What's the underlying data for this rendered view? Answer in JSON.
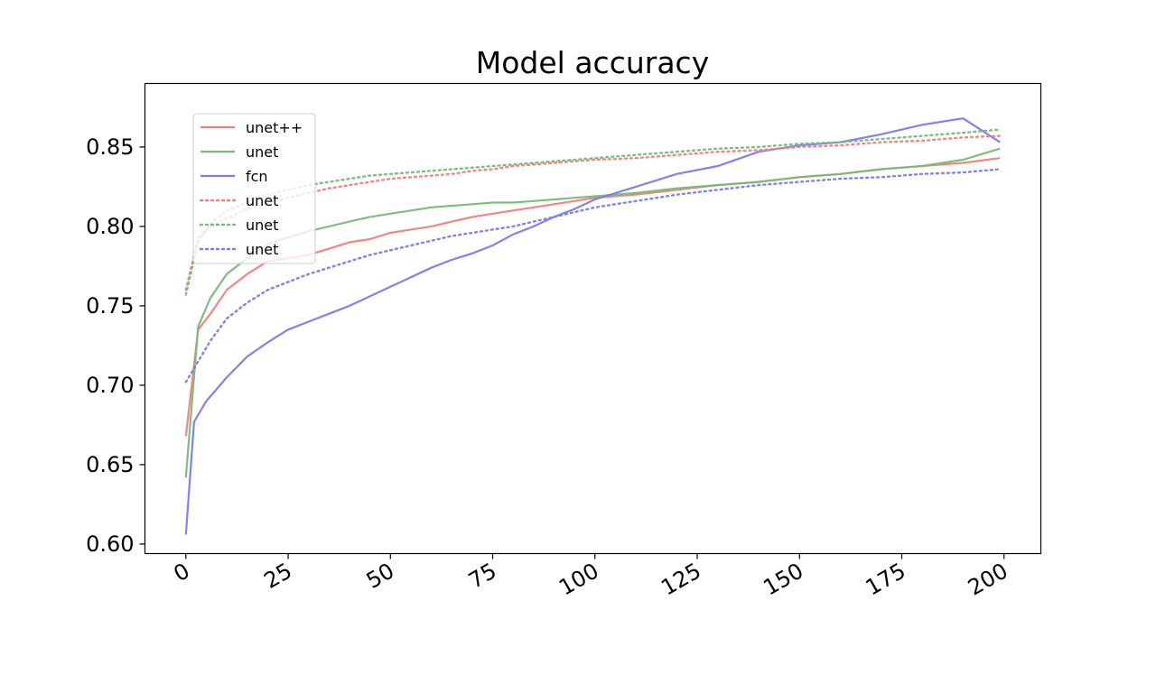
{
  "chart_data": {
    "type": "line",
    "title": "Model accuracy",
    "xlabel": "",
    "ylabel": "",
    "xlim": [
      -10,
      209
    ],
    "ylim": [
      0.594,
      0.89
    ],
    "xticks": [
      0,
      25,
      50,
      75,
      100,
      125,
      150,
      175,
      200
    ],
    "yticks": [
      0.6,
      0.65,
      0.7,
      0.75,
      0.8,
      0.85
    ],
    "ytick_labels": [
      "0.60",
      "0.65",
      "0.70",
      "0.75",
      "0.80",
      "0.85"
    ],
    "grid": false,
    "legend_position": "upper-left",
    "series": [
      {
        "name": "unet++",
        "color": "#f08080",
        "style": "solid",
        "points": [
          [
            0,
            0.668
          ],
          [
            3,
            0.735
          ],
          [
            6,
            0.745
          ],
          [
            10,
            0.76
          ],
          [
            15,
            0.77
          ],
          [
            20,
            0.778
          ],
          [
            25,
            0.78
          ],
          [
            30,
            0.782
          ],
          [
            35,
            0.786
          ],
          [
            40,
            0.79
          ],
          [
            45,
            0.792
          ],
          [
            50,
            0.796
          ],
          [
            55,
            0.798
          ],
          [
            60,
            0.8
          ],
          [
            65,
            0.803
          ],
          [
            70,
            0.806
          ],
          [
            75,
            0.808
          ],
          [
            80,
            0.81
          ],
          [
            85,
            0.812
          ],
          [
            90,
            0.814
          ],
          [
            95,
            0.816
          ],
          [
            100,
            0.818
          ],
          [
            110,
            0.82
          ],
          [
            120,
            0.823
          ],
          [
            130,
            0.826
          ],
          [
            140,
            0.828
          ],
          [
            150,
            0.831
          ],
          [
            160,
            0.833
          ],
          [
            170,
            0.836
          ],
          [
            180,
            0.838
          ],
          [
            190,
            0.84
          ],
          [
            199,
            0.843
          ]
        ]
      },
      {
        "name": "unet",
        "color": "#77bb77",
        "style": "solid",
        "points": [
          [
            0,
            0.642
          ],
          [
            3,
            0.737
          ],
          [
            6,
            0.755
          ],
          [
            10,
            0.77
          ],
          [
            15,
            0.78
          ],
          [
            20,
            0.789
          ],
          [
            25,
            0.793
          ],
          [
            30,
            0.797
          ],
          [
            35,
            0.8
          ],
          [
            40,
            0.803
          ],
          [
            45,
            0.806
          ],
          [
            50,
            0.808
          ],
          [
            55,
            0.81
          ],
          [
            60,
            0.812
          ],
          [
            65,
            0.813
          ],
          [
            70,
            0.814
          ],
          [
            75,
            0.815
          ],
          [
            80,
            0.815
          ],
          [
            85,
            0.816
          ],
          [
            90,
            0.817
          ],
          [
            95,
            0.818
          ],
          [
            100,
            0.819
          ],
          [
            110,
            0.821
          ],
          [
            120,
            0.824
          ],
          [
            130,
            0.826
          ],
          [
            140,
            0.828
          ],
          [
            150,
            0.831
          ],
          [
            160,
            0.833
          ],
          [
            170,
            0.836
          ],
          [
            180,
            0.838
          ],
          [
            190,
            0.842
          ],
          [
            199,
            0.849
          ]
        ]
      },
      {
        "name": "fcn",
        "color": "#7b7bee",
        "style": "solid",
        "points": [
          [
            0,
            0.606
          ],
          [
            2,
            0.677
          ],
          [
            5,
            0.69
          ],
          [
            10,
            0.705
          ],
          [
            15,
            0.718
          ],
          [
            20,
            0.727
          ],
          [
            25,
            0.735
          ],
          [
            30,
            0.74
          ],
          [
            35,
            0.745
          ],
          [
            40,
            0.75
          ],
          [
            45,
            0.756
          ],
          [
            50,
            0.762
          ],
          [
            55,
            0.768
          ],
          [
            60,
            0.774
          ],
          [
            65,
            0.779
          ],
          [
            70,
            0.783
          ],
          [
            75,
            0.788
          ],
          [
            80,
            0.795
          ],
          [
            85,
            0.8
          ],
          [
            90,
            0.806
          ],
          [
            95,
            0.811
          ],
          [
            100,
            0.817
          ],
          [
            110,
            0.825
          ],
          [
            120,
            0.833
          ],
          [
            130,
            0.838
          ],
          [
            140,
            0.847
          ],
          [
            150,
            0.851
          ],
          [
            160,
            0.853
          ],
          [
            170,
            0.858
          ],
          [
            180,
            0.864
          ],
          [
            190,
            0.868
          ],
          [
            199,
            0.853
          ]
        ]
      },
      {
        "name": "unet",
        "color": "#f08080",
        "style": "dotted",
        "points": [
          [
            0,
            0.76
          ],
          [
            3,
            0.793
          ],
          [
            6,
            0.8
          ],
          [
            10,
            0.805
          ],
          [
            15,
            0.811
          ],
          [
            20,
            0.815
          ],
          [
            25,
            0.818
          ],
          [
            30,
            0.821
          ],
          [
            35,
            0.824
          ],
          [
            40,
            0.826
          ],
          [
            45,
            0.828
          ],
          [
            50,
            0.83
          ],
          [
            55,
            0.831
          ],
          [
            60,
            0.832
          ],
          [
            65,
            0.833
          ],
          [
            70,
            0.835
          ],
          [
            75,
            0.836
          ],
          [
            80,
            0.838
          ],
          [
            85,
            0.839
          ],
          [
            90,
            0.84
          ],
          [
            95,
            0.841
          ],
          [
            100,
            0.842
          ],
          [
            110,
            0.843
          ],
          [
            120,
            0.845
          ],
          [
            130,
            0.847
          ],
          [
            140,
            0.848
          ],
          [
            150,
            0.85
          ],
          [
            160,
            0.851
          ],
          [
            170,
            0.853
          ],
          [
            180,
            0.854
          ],
          [
            190,
            0.856
          ],
          [
            199,
            0.857
          ]
        ]
      },
      {
        "name": "unet",
        "color": "#77bb77",
        "style": "dotted",
        "points": [
          [
            0,
            0.757
          ],
          [
            3,
            0.79
          ],
          [
            6,
            0.802
          ],
          [
            10,
            0.81
          ],
          [
            15,
            0.815
          ],
          [
            20,
            0.82
          ],
          [
            25,
            0.823
          ],
          [
            30,
            0.826
          ],
          [
            35,
            0.828
          ],
          [
            40,
            0.83
          ],
          [
            45,
            0.832
          ],
          [
            50,
            0.833
          ],
          [
            55,
            0.834
          ],
          [
            60,
            0.835
          ],
          [
            65,
            0.836
          ],
          [
            70,
            0.837
          ],
          [
            75,
            0.838
          ],
          [
            80,
            0.839
          ],
          [
            85,
            0.84
          ],
          [
            90,
            0.841
          ],
          [
            95,
            0.842
          ],
          [
            100,
            0.843
          ],
          [
            110,
            0.845
          ],
          [
            120,
            0.847
          ],
          [
            130,
            0.849
          ],
          [
            140,
            0.85
          ],
          [
            150,
            0.852
          ],
          [
            160,
            0.853
          ],
          [
            170,
            0.855
          ],
          [
            180,
            0.857
          ],
          [
            190,
            0.859
          ],
          [
            199,
            0.861
          ]
        ]
      },
      {
        "name": "unet",
        "color": "#7b7bee",
        "style": "dotted",
        "points": [
          [
            0,
            0.702
          ],
          [
            3,
            0.715
          ],
          [
            6,
            0.728
          ],
          [
            10,
            0.742
          ],
          [
            15,
            0.752
          ],
          [
            20,
            0.76
          ],
          [
            25,
            0.765
          ],
          [
            30,
            0.77
          ],
          [
            35,
            0.774
          ],
          [
            40,
            0.778
          ],
          [
            45,
            0.782
          ],
          [
            50,
            0.785
          ],
          [
            55,
            0.788
          ],
          [
            60,
            0.791
          ],
          [
            65,
            0.794
          ],
          [
            70,
            0.796
          ],
          [
            75,
            0.798
          ],
          [
            80,
            0.8
          ],
          [
            85,
            0.803
          ],
          [
            90,
            0.806
          ],
          [
            95,
            0.809
          ],
          [
            100,
            0.812
          ],
          [
            110,
            0.816
          ],
          [
            120,
            0.82
          ],
          [
            130,
            0.823
          ],
          [
            140,
            0.826
          ],
          [
            150,
            0.828
          ],
          [
            160,
            0.83
          ],
          [
            170,
            0.831
          ],
          [
            180,
            0.833
          ],
          [
            190,
            0.834
          ],
          [
            199,
            0.836
          ]
        ]
      }
    ]
  }
}
